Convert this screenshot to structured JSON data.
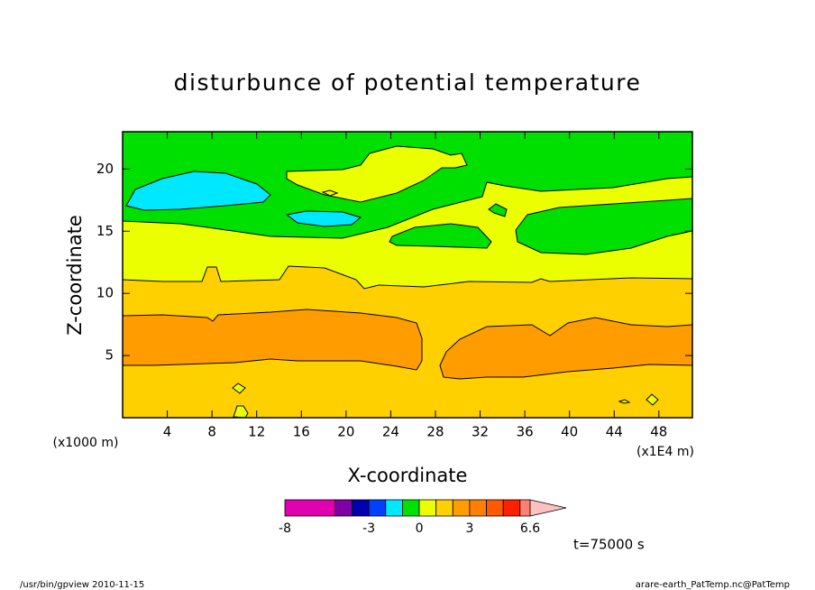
{
  "chart_data": {
    "type": "contour",
    "title": "disturbunce of potential temperature",
    "x_label": "X-coordinate",
    "y_label": "Z-coordinate",
    "x_unit": "(x1E4 m)",
    "y_unit": "(x1000 m)",
    "xlim": [
      0,
      51
    ],
    "xticks": [
      4,
      8,
      12,
      16,
      20,
      24,
      28,
      32,
      36,
      40,
      44,
      48
    ],
    "ylim": [
      0,
      23
    ],
    "yticks": [
      5,
      10,
      15,
      20
    ],
    "colorbar": {
      "levels": [
        -8,
        -5,
        -4,
        -3,
        -2,
        -1,
        0,
        1,
        2,
        3,
        4,
        5,
        6,
        6.6
      ],
      "ticks": [
        -8,
        -3,
        0,
        3,
        6.6
      ],
      "colors": [
        "#e000b0",
        "#8000a8",
        "#0000b0",
        "#0040ff",
        "#00e8ff",
        "#00e000",
        "#ecff00",
        "#ffd000",
        "#ff9c00",
        "#ff8000",
        "#ff5a00",
        "#ff2000",
        "#ff8070",
        "#ffc0c0"
      ]
    },
    "annotations": [
      "t=75000 s",
      "/usr/bin/gpview  2010-11-15",
      "arare-earth_PatTemp.nc@PatTemp"
    ]
  }
}
